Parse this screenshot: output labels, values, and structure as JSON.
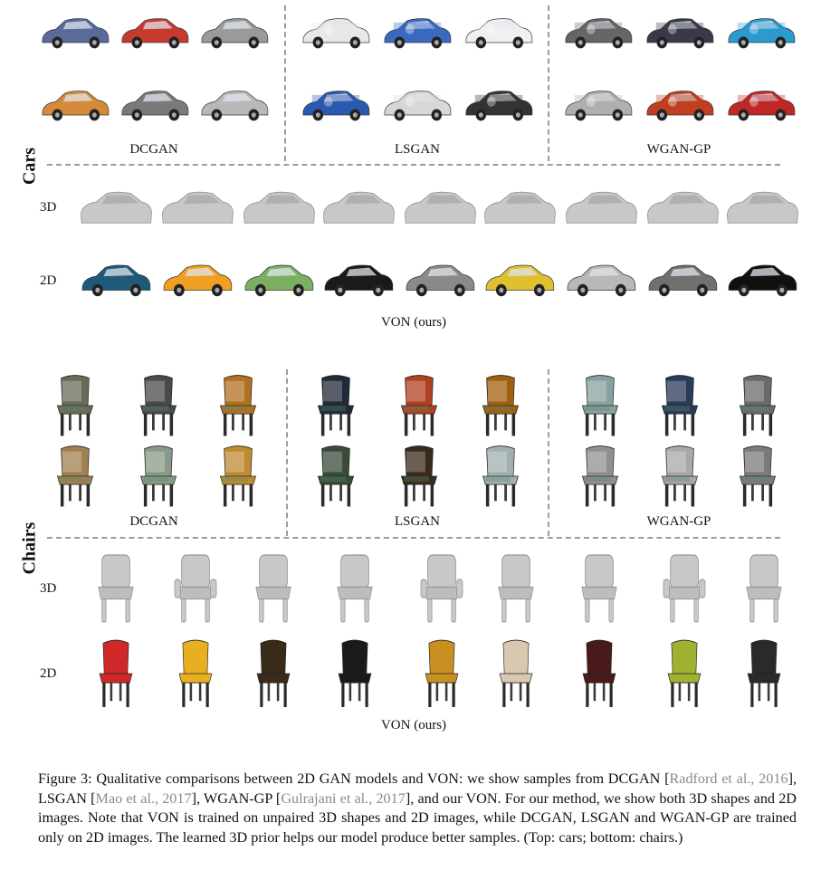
{
  "cars": {
    "section_label": "Cars",
    "gan_models": [
      "DCGAN",
      "LSGAN",
      "WGAN-GP"
    ],
    "row_labels": {
      "shape": "3D",
      "image": "2D"
    },
    "von_label": "VON (ours)"
  },
  "chairs": {
    "section_label": "Chairs",
    "gan_models": [
      "DCGAN",
      "LSGAN",
      "WGAN-GP"
    ],
    "row_labels": {
      "shape": "3D",
      "image": "2D"
    },
    "von_label": "VON (ours)"
  },
  "caption": {
    "t1": "Figure 3: Qualitative comparisons between 2D GAN models and VON: we show samples from DCGAN [",
    "c1": "Radford et al., 2016",
    "t2": "], LSGAN [",
    "c2": "Mao et al., 2017",
    "t3": "], WGAN-GP [",
    "c3": "Gulrajani et al., 2017",
    "t4": "], and our VON. For our method, we show both 3D shapes and 2D images. Note that VON is trained on unpaired 3D shapes and 2D images, while DCGAN, LSGAN and WGAN-GP are trained only on 2D images. The learned 3D prior helps our model produce better samples. (Top: cars; bottom: chairs.)"
  },
  "colors": {
    "cite": "#8a8a8a",
    "divider": "#9c9c9c",
    "shape_gray": "#c8c8c8",
    "car_samples": [
      "#5a6a9a",
      "#c93a2e",
      "#9a9a9a",
      "#d58a3a",
      "#7a7a7a",
      "#b8b8b8",
      "#e8e8e8",
      "#3a6ac0",
      "#f0f0f0",
      "#2a5ab0",
      "#d8d8d8",
      "#333333",
      "#666666",
      "#3a3a4a",
      "#2a9ad0",
      "#b0b0b0",
      "#c04020",
      "#c02828"
    ],
    "car_2d": [
      "#1f5a7a",
      "#f0a020",
      "#7ab060",
      "#1a1a1a",
      "#8a8a8a",
      "#e0c030",
      "#b8b8b8",
      "#707070",
      "#101010"
    ],
    "chair_samples": [
      "#6a6a5a",
      "#4a4a4a",
      "#b07020",
      "#a08050",
      "#8a9a8a",
      "#c08a30",
      "#202a3a",
      "#b04020",
      "#a06010",
      "#3a4a3a",
      "#3a2a1a",
      "#a0b0b0",
      "#8aa0a0",
      "#2a3a5a",
      "#6a6a6a",
      "#909090",
      "#a8a8a8",
      "#7a7a7a"
    ],
    "chair_2d": [
      "#d02828",
      "#e8b020",
      "#3a2a1a",
      "#1a1a1a",
      "#c89020",
      "#d8c8b0",
      "#4a1a1a",
      "#a0b030",
      "#2a2a2a"
    ]
  }
}
